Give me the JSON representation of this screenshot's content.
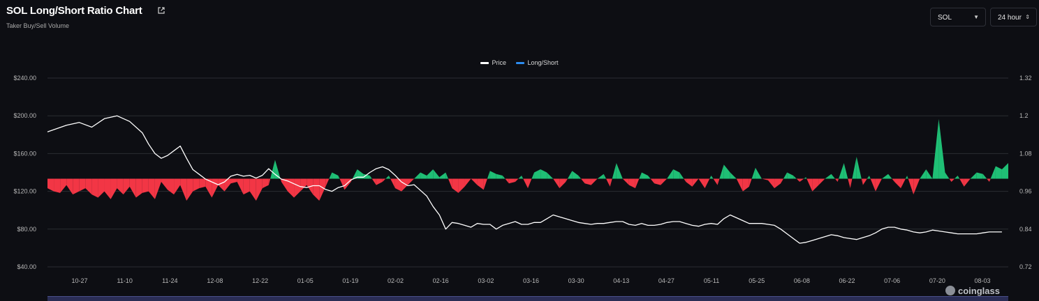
{
  "header": {
    "title": "SOL Long/Short Ratio Chart",
    "subtitle": "Taker Buy/Sell Volume",
    "coin_select": "SOL",
    "range_select": "24 hour"
  },
  "watermark": "coinglass",
  "colors": {
    "background": "#0d0e13",
    "price_line": "#ffffff",
    "long": "#1fbf75",
    "short": "#f23645",
    "grid": "#2a2c33",
    "legend_long_short": "#2d8cf0"
  },
  "chart_data": {
    "type": "area",
    "legend": [
      {
        "name": "Price",
        "color": "#ffffff"
      },
      {
        "name": "Long/Short",
        "color": "#2d8cf0"
      }
    ],
    "x_tick_labels": [
      "10-27",
      "11-10",
      "11-24",
      "12-08",
      "12-22",
      "01-05",
      "01-19",
      "02-02",
      "02-16",
      "03-02",
      "03-16",
      "03-30",
      "04-13",
      "04-27",
      "05-11",
      "05-25",
      "06-08",
      "06-22",
      "07-06",
      "07-20",
      "08-03"
    ],
    "y_left": {
      "ticks": [
        "$40.00",
        "$80.00",
        "$120.00",
        "$160.00",
        "$200.00",
        "$240.00"
      ],
      "range": [
        40,
        240
      ]
    },
    "y_right": {
      "ticks": [
        "0.72",
        "0.84",
        "0.96",
        "1.08",
        "1.2",
        "1.32"
      ],
      "range": [
        0.72,
        1.32
      ],
      "baseline": 1.0
    },
    "series": [
      {
        "name": "Price",
        "axis": "left",
        "points": [
          [
            0,
            183
          ],
          [
            3,
            190
          ],
          [
            5,
            193
          ],
          [
            7,
            188
          ],
          [
            9,
            197
          ],
          [
            11,
            200
          ],
          [
            13,
            194
          ],
          [
            15,
            182
          ],
          [
            16,
            170
          ],
          [
            17,
            160
          ],
          [
            18,
            155
          ],
          [
            19,
            158
          ],
          [
            20,
            163
          ],
          [
            21,
            168
          ],
          [
            22,
            155
          ],
          [
            23,
            143
          ],
          [
            24,
            138
          ],
          [
            25,
            133
          ],
          [
            26,
            130
          ],
          [
            27,
            127
          ],
          [
            28,
            130
          ],
          [
            29,
            136
          ],
          [
            30,
            138
          ],
          [
            31,
            136
          ],
          [
            32,
            137
          ],
          [
            33,
            134
          ],
          [
            34,
            137
          ],
          [
            35,
            144
          ],
          [
            36,
            138
          ],
          [
            37,
            133
          ],
          [
            38,
            131
          ],
          [
            39,
            128
          ],
          [
            40,
            125
          ],
          [
            41,
            124
          ],
          [
            42,
            126
          ],
          [
            43,
            126
          ],
          [
            44,
            122
          ],
          [
            45,
            120
          ],
          [
            46,
            124
          ],
          [
            47,
            126
          ],
          [
            48,
            132
          ],
          [
            49,
            135
          ],
          [
            50,
            135
          ],
          [
            51,
            140
          ],
          [
            52,
            144
          ],
          [
            53,
            146
          ],
          [
            54,
            143
          ],
          [
            55,
            137
          ],
          [
            56,
            130
          ],
          [
            57,
            126
          ],
          [
            58,
            127
          ],
          [
            59,
            121
          ],
          [
            60,
            115
          ],
          [
            61,
            104
          ],
          [
            62,
            95
          ],
          [
            63,
            80
          ],
          [
            64,
            87
          ],
          [
            65,
            86
          ],
          [
            66,
            84
          ],
          [
            67,
            82
          ],
          [
            68,
            86
          ],
          [
            69,
            85
          ],
          [
            70,
            85
          ],
          [
            71,
            80
          ],
          [
            72,
            84
          ],
          [
            73,
            86
          ],
          [
            74,
            88
          ],
          [
            75,
            85
          ],
          [
            76,
            85
          ],
          [
            77,
            87
          ],
          [
            78,
            87
          ],
          [
            79,
            91
          ],
          [
            80,
            95
          ],
          [
            81,
            93
          ],
          [
            82,
            91
          ],
          [
            83,
            89
          ],
          [
            84,
            87
          ],
          [
            85,
            86
          ],
          [
            86,
            85
          ],
          [
            87,
            86
          ],
          [
            88,
            86
          ],
          [
            89,
            87
          ],
          [
            90,
            88
          ],
          [
            91,
            88
          ],
          [
            92,
            85
          ],
          [
            93,
            84
          ],
          [
            94,
            86
          ],
          [
            95,
            84
          ],
          [
            96,
            84
          ],
          [
            97,
            85
          ],
          [
            98,
            87
          ],
          [
            99,
            88
          ],
          [
            100,
            88
          ],
          [
            101,
            86
          ],
          [
            102,
            84
          ],
          [
            103,
            83
          ],
          [
            104,
            85
          ],
          [
            105,
            86
          ],
          [
            106,
            85
          ],
          [
            107,
            91
          ],
          [
            108,
            95
          ],
          [
            109,
            92
          ],
          [
            110,
            89
          ],
          [
            111,
            86
          ],
          [
            112,
            86
          ],
          [
            113,
            86
          ],
          [
            114,
            85
          ],
          [
            115,
            84
          ],
          [
            116,
            80
          ],
          [
            117,
            75
          ],
          [
            118,
            70
          ],
          [
            119,
            65
          ],
          [
            120,
            66
          ],
          [
            121,
            68
          ],
          [
            122,
            70
          ],
          [
            123,
            72
          ],
          [
            124,
            74
          ],
          [
            125,
            73
          ],
          [
            126,
            71
          ],
          [
            127,
            70
          ],
          [
            128,
            69
          ],
          [
            129,
            71
          ],
          [
            130,
            73
          ],
          [
            131,
            76
          ],
          [
            132,
            80
          ],
          [
            133,
            82
          ],
          [
            134,
            82
          ],
          [
            135,
            80
          ],
          [
            136,
            79
          ],
          [
            137,
            77
          ],
          [
            138,
            76
          ],
          [
            139,
            77
          ],
          [
            140,
            79
          ],
          [
            141,
            78
          ],
          [
            142,
            77
          ],
          [
            143,
            76
          ],
          [
            144,
            75
          ],
          [
            145,
            75
          ],
          [
            146,
            75
          ],
          [
            147,
            75
          ],
          [
            148,
            76
          ],
          [
            149,
            77
          ],
          [
            150,
            77
          ],
          [
            151,
            77
          ]
        ]
      },
      {
        "name": "Long/Short",
        "axis": "right",
        "points": [
          [
            0,
            0.97
          ],
          [
            1,
            0.96
          ],
          [
            2,
            0.955
          ],
          [
            3,
            0.98
          ],
          [
            4,
            0.95
          ],
          [
            5,
            0.96
          ],
          [
            6,
            0.97
          ],
          [
            7,
            0.95
          ],
          [
            8,
            0.94
          ],
          [
            9,
            0.96
          ],
          [
            10,
            0.935
          ],
          [
            11,
            0.97
          ],
          [
            12,
            0.95
          ],
          [
            13,
            0.975
          ],
          [
            14,
            0.94
          ],
          [
            15,
            0.955
          ],
          [
            16,
            0.96
          ],
          [
            17,
            0.935
          ],
          [
            18,
            0.99
          ],
          [
            19,
            0.965
          ],
          [
            20,
            0.95
          ],
          [
            21,
            0.98
          ],
          [
            22,
            0.93
          ],
          [
            23,
            0.96
          ],
          [
            24,
            0.97
          ],
          [
            25,
            0.975
          ],
          [
            26,
            0.94
          ],
          [
            27,
            0.98
          ],
          [
            28,
            0.96
          ],
          [
            29,
            0.985
          ],
          [
            30,
            0.99
          ],
          [
            31,
            0.95
          ],
          [
            32,
            0.96
          ],
          [
            33,
            0.93
          ],
          [
            34,
            0.97
          ],
          [
            35,
            0.98
          ],
          [
            36,
            1.06
          ],
          [
            37,
            0.99
          ],
          [
            38,
            0.96
          ],
          [
            39,
            0.94
          ],
          [
            40,
            0.96
          ],
          [
            41,
            0.98
          ],
          [
            42,
            0.95
          ],
          [
            43,
            0.93
          ],
          [
            44,
            0.975
          ],
          [
            45,
            1.02
          ],
          [
            46,
            1.01
          ],
          [
            47,
            0.965
          ],
          [
            48,
            0.99
          ],
          [
            49,
            1.03
          ],
          [
            50,
            1.015
          ],
          [
            51,
            1.01
          ],
          [
            52,
            0.98
          ],
          [
            53,
            0.99
          ],
          [
            54,
            1.01
          ],
          [
            55,
            0.97
          ],
          [
            56,
            0.96
          ],
          [
            57,
            0.98
          ],
          [
            58,
            1.0
          ],
          [
            59,
            1.02
          ],
          [
            60,
            1.01
          ],
          [
            61,
            1.03
          ],
          [
            62,
            1.005
          ],
          [
            63,
            1.02
          ],
          [
            64,
            0.97
          ],
          [
            65,
            0.955
          ],
          [
            66,
            0.975
          ],
          [
            67,
            1.0
          ],
          [
            68,
            0.98
          ],
          [
            69,
            0.965
          ],
          [
            70,
            1.025
          ],
          [
            71,
            1.015
          ],
          [
            72,
            1.01
          ],
          [
            73,
            0.985
          ],
          [
            74,
            0.99
          ],
          [
            75,
            1.01
          ],
          [
            76,
            0.97
          ],
          [
            77,
            1.02
          ],
          [
            78,
            1.03
          ],
          [
            79,
            1.02
          ],
          [
            80,
            1.0
          ],
          [
            81,
            0.97
          ],
          [
            82,
            0.99
          ],
          [
            83,
            1.025
          ],
          [
            84,
            1.01
          ],
          [
            85,
            0.985
          ],
          [
            86,
            0.98
          ],
          [
            87,
            1.0
          ],
          [
            88,
            1.015
          ],
          [
            89,
            0.975
          ],
          [
            90,
            1.05
          ],
          [
            91,
            1.0
          ],
          [
            92,
            0.98
          ],
          [
            93,
            0.97
          ],
          [
            94,
            1.02
          ],
          [
            95,
            1.01
          ],
          [
            96,
            0.985
          ],
          [
            97,
            0.98
          ],
          [
            98,
            1.0
          ],
          [
            99,
            1.03
          ],
          [
            100,
            1.02
          ],
          [
            101,
            0.99
          ],
          [
            102,
            0.975
          ],
          [
            103,
            1.0
          ],
          [
            104,
            0.97
          ],
          [
            105,
            1.01
          ],
          [
            106,
            0.98
          ],
          [
            107,
            1.045
          ],
          [
            108,
            1.02
          ],
          [
            109,
            1.0
          ],
          [
            110,
            0.96
          ],
          [
            111,
            0.975
          ],
          [
            112,
            1.035
          ],
          [
            113,
            1.0
          ],
          [
            114,
            0.995
          ],
          [
            115,
            0.97
          ],
          [
            116,
            0.985
          ],
          [
            117,
            1.02
          ],
          [
            118,
            1.01
          ],
          [
            119,
            0.99
          ],
          [
            120,
            1.005
          ],
          [
            121,
            0.96
          ],
          [
            122,
            0.98
          ],
          [
            123,
            1.0
          ],
          [
            124,
            1.015
          ],
          [
            125,
            0.99
          ],
          [
            126,
            1.05
          ],
          [
            127,
            0.97
          ],
          [
            128,
            1.07
          ],
          [
            129,
            0.98
          ],
          [
            130,
            1.01
          ],
          [
            131,
            0.96
          ],
          [
            132,
            1.0
          ],
          [
            133,
            1.015
          ],
          [
            134,
            0.99
          ],
          [
            135,
            0.97
          ],
          [
            136,
            1.01
          ],
          [
            137,
            0.95
          ],
          [
            138,
            1.0
          ],
          [
            139,
            1.03
          ],
          [
            140,
            1.0
          ],
          [
            141,
            1.19
          ],
          [
            142,
            1.02
          ],
          [
            143,
            0.99
          ],
          [
            144,
            1.01
          ],
          [
            145,
            0.975
          ],
          [
            146,
            1.0
          ],
          [
            147,
            1.02
          ],
          [
            148,
            1.015
          ],
          [
            149,
            0.99
          ],
          [
            150,
            1.04
          ],
          [
            151,
            1.03
          ],
          [
            152,
            1.05
          ]
        ]
      }
    ],
    "grid": true,
    "legend_position": "top-center"
  }
}
